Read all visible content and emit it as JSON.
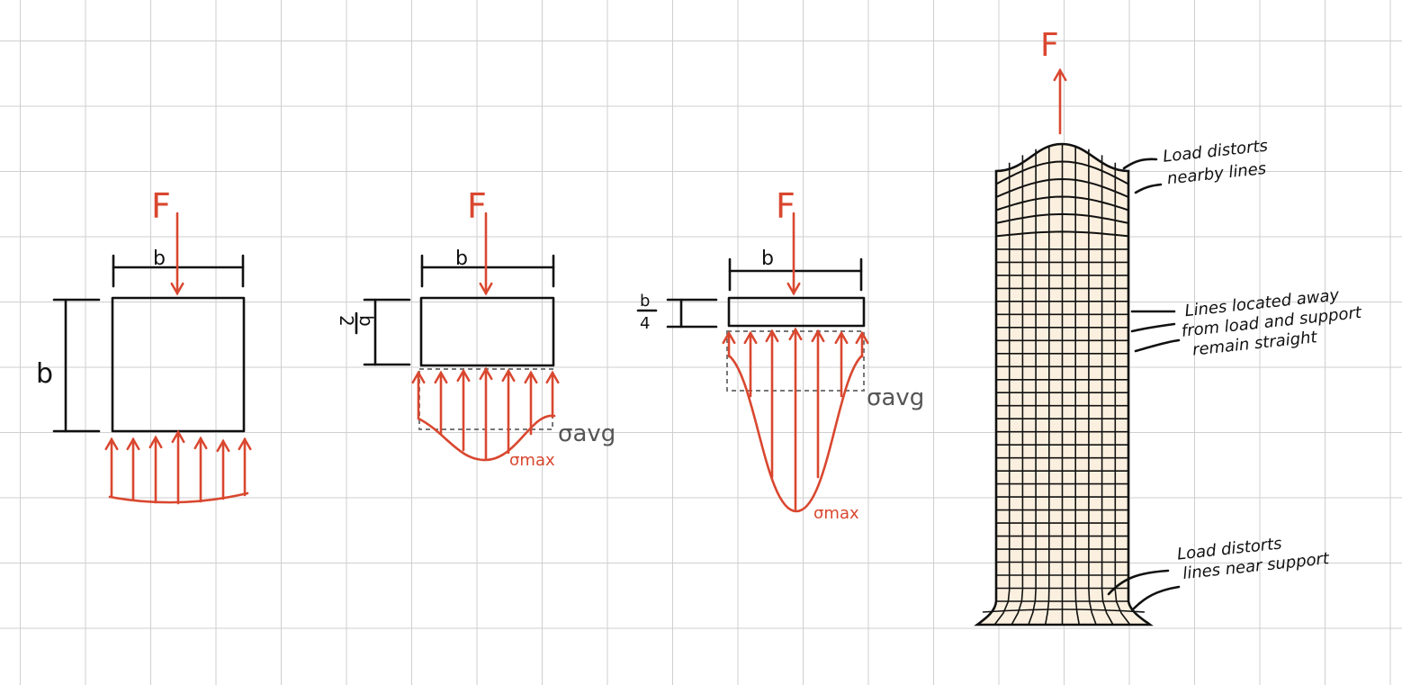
{
  "colors": {
    "load": "#d9472f",
    "block_fill": "#fbf0df",
    "outline": "#111111",
    "grid": "#cfcfcf",
    "avg_line": "#777777"
  },
  "blocks": [
    {
      "force_label": "F",
      "width_label": "b",
      "height_label": "b"
    },
    {
      "force_label": "F",
      "width_label": "b",
      "height_label_num": "b",
      "height_label_den": "2",
      "avg_label": "σavg",
      "max_label": "σmax"
    },
    {
      "force_label": "F",
      "width_label": "b",
      "height_label_num": "b",
      "height_label_den": "4",
      "avg_label": "σavg",
      "max_label": "σmax"
    }
  ],
  "column": {
    "force_label": "F",
    "note_top": [
      "Load distorts",
      "nearby lines"
    ],
    "note_middle": [
      "Lines located away",
      "from load and support",
      "remain straight"
    ],
    "note_bottom": [
      "Load distorts",
      "lines near support"
    ]
  }
}
